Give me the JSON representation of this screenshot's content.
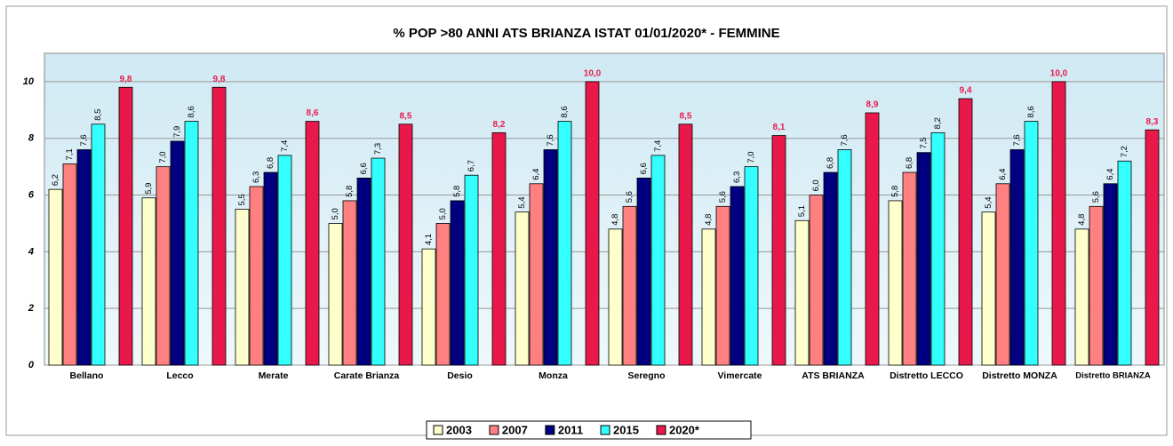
{
  "chart_data": {
    "type": "bar",
    "title": "% POP >80 ANNI ATS BRIANZA ISTAT 01/01/2020* -  FEMMINE",
    "categories": [
      "Bellano",
      "Lecco",
      "Merate",
      "Carate Brianza",
      "Desio",
      "Monza",
      "Seregno",
      "Vimercate",
      "ATS BRIANZA",
      "Distretto LECCO",
      "Distretto MONZA",
      "Distretto BRIANZA"
    ],
    "series": [
      {
        "name": "2003",
        "color": "#ffffcc",
        "values": [
          6.2,
          5.9,
          5.5,
          5.0,
          4.1,
          5.4,
          4.8,
          4.8,
          5.1,
          5.8,
          5.4,
          4.8
        ],
        "value_labels": [
          "6,2",
          "5,9",
          "5,5",
          "5,0",
          "4,1",
          "5,4",
          "4,8",
          "4,8",
          "5,1",
          "5,8",
          "5,4",
          "4,8"
        ]
      },
      {
        "name": "2007",
        "color": "#ff8080",
        "values": [
          7.1,
          7.0,
          6.3,
          5.8,
          5.0,
          6.4,
          5.6,
          5.6,
          6.0,
          6.8,
          6.4,
          5.6
        ],
        "value_labels": [
          "7,1",
          "7,0",
          "6,3",
          "5,8",
          "5,0",
          "6,4",
          "5,6",
          "5,6",
          "6,0",
          "6,8",
          "6,4",
          "5,6"
        ]
      },
      {
        "name": "2011",
        "color": "#000080",
        "values": [
          7.6,
          7.9,
          6.8,
          6.6,
          5.8,
          7.6,
          6.6,
          6.3,
          6.8,
          7.5,
          7.6,
          6.4
        ],
        "value_labels": [
          "7,6",
          "7,9",
          "6,8",
          "6,6",
          "5,8",
          "7,6",
          "6,6",
          "6,3",
          "6,8",
          "7,5",
          "7,6",
          "6,4"
        ]
      },
      {
        "name": "2015",
        "color": "#33ffff",
        "values": [
          8.5,
          8.6,
          7.4,
          7.3,
          6.7,
          8.6,
          7.4,
          7.0,
          7.6,
          8.2,
          8.6,
          7.2
        ],
        "value_labels": [
          "8,5",
          "8,6",
          "7,4",
          "7,3",
          "6,7",
          "8,6",
          "7,4",
          "7,0",
          "7,6",
          "8,2",
          "8,6",
          "7,2"
        ]
      },
      {
        "name": "2020*",
        "color": "#e8194a",
        "values": [
          9.8,
          9.8,
          8.6,
          8.5,
          8.2,
          10.0,
          8.5,
          8.1,
          8.9,
          9.4,
          10.0,
          8.3
        ],
        "value_labels": [
          "9,8",
          "9,8",
          "8,6",
          "8,5",
          "8,2",
          "10,0",
          "8,5",
          "8,1",
          "8,9",
          "9,4",
          "10,0",
          "8,3"
        ]
      }
    ],
    "ylim": [
      0,
      11
    ],
    "yticks": [
      0,
      2,
      4,
      6,
      8,
      10
    ],
    "grid": true,
    "legend": "bottom"
  }
}
